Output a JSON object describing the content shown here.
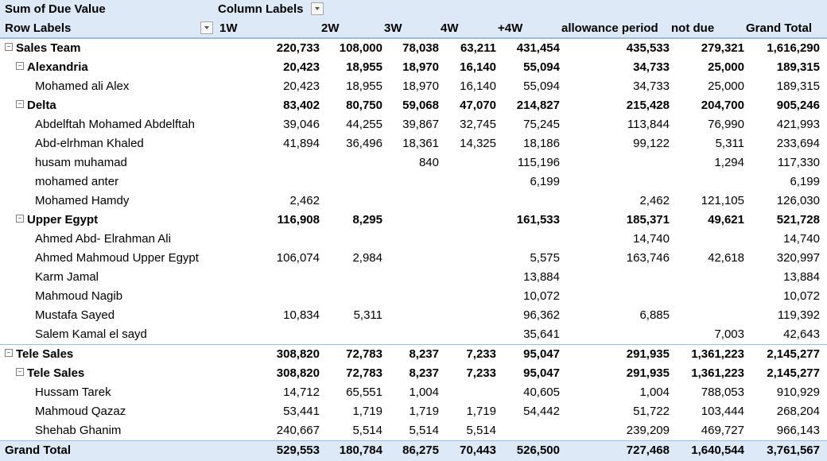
{
  "pivot": {
    "value_field": "Sum of Due Value",
    "column_labels_caption": "Column Labels",
    "row_labels_caption": "Row Labels",
    "columns": [
      "1W",
      "2W",
      "3W",
      "4W",
      "+4W",
      "allowance period",
      "not due",
      "Grand Total"
    ],
    "rows": [
      {
        "level": 0,
        "label": "Sales Team",
        "values": [
          "220,733",
          "108,000",
          "78,038",
          "63,211",
          "431,454",
          "435,533",
          "279,321",
          "1,616,290"
        ]
      },
      {
        "level": 1,
        "label": "Alexandria",
        "values": [
          "20,423",
          "18,955",
          "18,970",
          "16,140",
          "55,094",
          "34,733",
          "25,000",
          "189,315"
        ]
      },
      {
        "level": 2,
        "label": "Mohamed ali Alex",
        "values": [
          "20,423",
          "18,955",
          "18,970",
          "16,140",
          "55,094",
          "34,733",
          "25,000",
          "189,315"
        ]
      },
      {
        "level": 1,
        "label": "Delta",
        "values": [
          "83,402",
          "80,750",
          "59,068",
          "47,070",
          "214,827",
          "215,428",
          "204,700",
          "905,246"
        ]
      },
      {
        "level": 2,
        "label": "Abdelftah Mohamed Abdelftah",
        "values": [
          "39,046",
          "44,255",
          "39,867",
          "32,745",
          "75,245",
          "113,844",
          "76,990",
          "421,993"
        ]
      },
      {
        "level": 2,
        "label": "Abd-elrhman Khaled",
        "values": [
          "41,894",
          "36,496",
          "18,361",
          "14,325",
          "18,186",
          "99,122",
          "5,311",
          "233,694"
        ]
      },
      {
        "level": 2,
        "label": "husam muhamad",
        "values": [
          "",
          "",
          "840",
          "",
          "115,196",
          "",
          "1,294",
          "117,330"
        ]
      },
      {
        "level": 2,
        "label": "mohamed anter",
        "values": [
          "",
          "",
          "",
          "",
          "6,199",
          "",
          "",
          "6,199"
        ]
      },
      {
        "level": 2,
        "label": "Mohamed Hamdy",
        "values": [
          "2,462",
          "",
          "",
          "",
          "",
          "2,462",
          "121,105",
          "126,030"
        ]
      },
      {
        "level": 1,
        "label": "Upper Egypt",
        "values": [
          "116,908",
          "8,295",
          "",
          "",
          "161,533",
          "185,371",
          "49,621",
          "521,728"
        ]
      },
      {
        "level": 2,
        "label": "Ahmed Abd- Elrahman Ali",
        "values": [
          "",
          "",
          "",
          "",
          "",
          "14,740",
          "",
          "14,740"
        ]
      },
      {
        "level": 2,
        "label": "Ahmed Mahmoud Upper Egypt",
        "values": [
          "106,074",
          "2,984",
          "",
          "",
          "5,575",
          "163,746",
          "42,618",
          "320,997"
        ]
      },
      {
        "level": 2,
        "label": "Karm Jamal",
        "values": [
          "",
          "",
          "",
          "",
          "13,884",
          "",
          "",
          "13,884"
        ]
      },
      {
        "level": 2,
        "label": "Mahmoud Nagib",
        "values": [
          "",
          "",
          "",
          "",
          "10,072",
          "",
          "",
          "10,072"
        ]
      },
      {
        "level": 2,
        "label": "Mustafa Sayed",
        "values": [
          "10,834",
          "5,311",
          "",
          "",
          "96,362",
          "6,885",
          "",
          "119,392"
        ]
      },
      {
        "level": 2,
        "label": "Salem Kamal el sayd",
        "values": [
          "",
          "",
          "",
          "",
          "35,641",
          "",
          "7,003",
          "42,643"
        ]
      },
      {
        "level": 0,
        "label": "Tele Sales",
        "values": [
          "308,820",
          "72,783",
          "8,237",
          "7,233",
          "95,047",
          "291,935",
          "1,361,223",
          "2,145,277"
        ]
      },
      {
        "level": 1,
        "label": "Tele Sales",
        "values": [
          "308,820",
          "72,783",
          "8,237",
          "7,233",
          "95,047",
          "291,935",
          "1,361,223",
          "2,145,277"
        ]
      },
      {
        "level": 2,
        "label": "Hussam Tarek",
        "values": [
          "14,712",
          "65,551",
          "1,004",
          "",
          "40,605",
          "1,004",
          "788,053",
          "910,929"
        ]
      },
      {
        "level": 2,
        "label": "Mahmoud Qazaz",
        "values": [
          "53,441",
          "1,719",
          "1,719",
          "1,719",
          "54,442",
          "51,722",
          "103,444",
          "268,204"
        ]
      },
      {
        "level": 2,
        "label": "Shehab Ghanim",
        "values": [
          "240,667",
          "5,514",
          "5,514",
          "5,514",
          "",
          "239,209",
          "469,727",
          "966,143"
        ]
      }
    ],
    "grand_total": {
      "label": "Grand Total",
      "values": [
        "529,553",
        "180,784",
        "86,275",
        "70,443",
        "526,500",
        "727,468",
        "1,640,544",
        "3,761,567"
      ]
    },
    "toggle_symbol": "⊟"
  }
}
